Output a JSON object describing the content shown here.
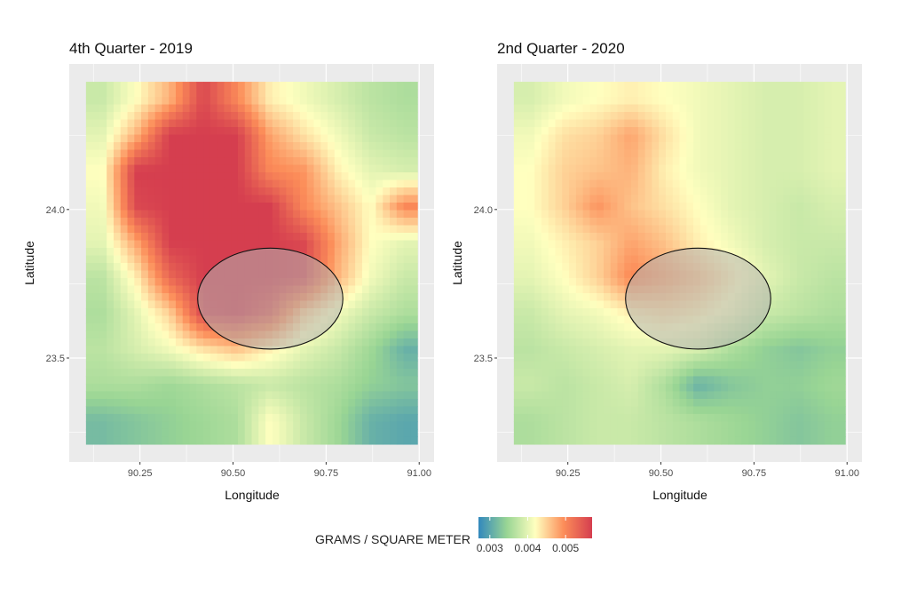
{
  "chart_data": {
    "type": "heatmap",
    "colorbar": {
      "title": "GRAMS / SQUARE METER",
      "ticks": [
        0.003,
        0.004,
        0.005
      ],
      "tick_labels": [
        "0.003",
        "0.004",
        "0.005"
      ],
      "range": [
        0.0027,
        0.0057
      ],
      "colors": [
        "#3288bd",
        "#99d594",
        "#ffffbf",
        "#fc8d59",
        "#d53e4f"
      ],
      "placement": "bottom"
    },
    "grid": true,
    "panels": [
      {
        "title": "4th Quarter - 2019",
        "xlabel": "Longitude",
        "ylabel": "Latitude",
        "xlim": [
          90.06,
          91.04
        ],
        "ylim": [
          23.15,
          24.49
        ],
        "x_ticks": [
          90.25,
          90.5,
          90.75,
          91.0
        ],
        "x_tick_labels": [
          "90.25",
          "90.50",
          "90.75",
          "91.00"
        ],
        "y_ticks": [
          23.5,
          24.0
        ],
        "y_tick_labels": [
          "23.5",
          "24.0"
        ],
        "lon": [
          90.15,
          90.24,
          90.33,
          90.42,
          90.51,
          90.6,
          90.69,
          90.78,
          90.86,
          90.95
        ],
        "lat": [
          24.37,
          24.25,
          24.13,
          24.0,
          23.88,
          23.76,
          23.64,
          23.52,
          23.4,
          23.27
        ],
        "values": [
          [
            0.0038,
            0.0042,
            0.0047,
            0.0056,
            0.005,
            0.0043,
            0.0041,
            0.0039,
            0.0037,
            0.0036
          ],
          [
            0.004,
            0.0047,
            0.0057,
            0.0057,
            0.0057,
            0.0048,
            0.0044,
            0.0041,
            0.0038,
            0.0037
          ],
          [
            0.0042,
            0.0057,
            0.0057,
            0.0057,
            0.0057,
            0.005,
            0.0049,
            0.0043,
            0.004,
            0.0039
          ],
          [
            0.0041,
            0.0056,
            0.0057,
            0.0057,
            0.0057,
            0.0057,
            0.005,
            0.0046,
            0.0042,
            0.005
          ],
          [
            0.004,
            0.0048,
            0.0057,
            0.0057,
            0.0057,
            0.0057,
            0.0056,
            0.0048,
            0.0042,
            0.004
          ],
          [
            0.0037,
            0.0043,
            0.0053,
            0.0057,
            0.0057,
            0.0057,
            0.0056,
            0.0047,
            0.0041,
            0.0038
          ],
          [
            0.0036,
            0.004,
            0.0045,
            0.0056,
            0.0057,
            0.0054,
            0.0045,
            0.0041,
            0.0038,
            0.0036
          ],
          [
            0.0037,
            0.0039,
            0.0041,
            0.0044,
            0.0046,
            0.0043,
            0.004,
            0.0038,
            0.0035,
            0.0031
          ],
          [
            0.0036,
            0.0036,
            0.0035,
            0.0036,
            0.0037,
            0.0038,
            0.0037,
            0.0036,
            0.0034,
            0.0033
          ],
          [
            0.0032,
            0.0033,
            0.0034,
            0.0035,
            0.0036,
            0.0042,
            0.0038,
            0.0035,
            0.0031,
            0.003
          ]
        ],
        "highlight_ellipse": {
          "center_lon": 90.6,
          "center_lat": 23.7,
          "radius_lon": 0.195,
          "radius_lat": 0.17
        }
      },
      {
        "title": "2nd Quarter - 2020",
        "xlabel": "Longitude",
        "ylabel": "Latitude",
        "xlim": [
          90.06,
          91.04
        ],
        "ylim": [
          23.15,
          24.49
        ],
        "x_ticks": [
          90.25,
          90.5,
          90.75,
          91.0
        ],
        "x_tick_labels": [
          "90.25",
          "90.50",
          "90.75",
          "91.00"
        ],
        "y_ticks": [
          23.5,
          24.0
        ],
        "y_tick_labels": [
          "23.5",
          "24.0"
        ],
        "lon": [
          90.15,
          90.24,
          90.33,
          90.42,
          90.51,
          90.6,
          90.69,
          90.78,
          90.86,
          90.95
        ],
        "lat": [
          24.37,
          24.25,
          24.13,
          24.0,
          23.88,
          23.76,
          23.64,
          23.52,
          23.4,
          23.27
        ],
        "values": [
          [
            0.0039,
            0.0041,
            0.0042,
            0.0043,
            0.0042,
            0.0041,
            0.004,
            0.0039,
            0.0039,
            0.004
          ],
          [
            0.0041,
            0.0044,
            0.0045,
            0.0048,
            0.0044,
            0.0041,
            0.004,
            0.0039,
            0.0039,
            0.004
          ],
          [
            0.0042,
            0.0045,
            0.0046,
            0.0047,
            0.0043,
            0.0041,
            0.004,
            0.0039,
            0.0039,
            0.004
          ],
          [
            0.0042,
            0.0045,
            0.0049,
            0.0046,
            0.0044,
            0.0042,
            0.004,
            0.0039,
            0.0038,
            0.0039
          ],
          [
            0.0041,
            0.0043,
            0.0045,
            0.0048,
            0.0046,
            0.0043,
            0.0041,
            0.0039,
            0.0038,
            0.0038
          ],
          [
            0.004,
            0.0042,
            0.0045,
            0.005,
            0.0048,
            0.0046,
            0.0043,
            0.004,
            0.0038,
            0.0037
          ],
          [
            0.0038,
            0.004,
            0.0041,
            0.0043,
            0.0044,
            0.0043,
            0.0041,
            0.0038,
            0.0037,
            0.0036
          ],
          [
            0.0037,
            0.0038,
            0.0039,
            0.004,
            0.004,
            0.0039,
            0.0036,
            0.0034,
            0.0033,
            0.0034
          ],
          [
            0.0038,
            0.0037,
            0.0038,
            0.0039,
            0.0036,
            0.0031,
            0.0033,
            0.0034,
            0.0034,
            0.0035
          ],
          [
            0.0036,
            0.0037,
            0.0038,
            0.0038,
            0.0037,
            0.0036,
            0.0035,
            0.0034,
            0.0033,
            0.0034
          ]
        ],
        "highlight_ellipse": {
          "center_lon": 90.6,
          "center_lat": 23.7,
          "radius_lon": 0.195,
          "radius_lat": 0.17
        }
      }
    ]
  }
}
